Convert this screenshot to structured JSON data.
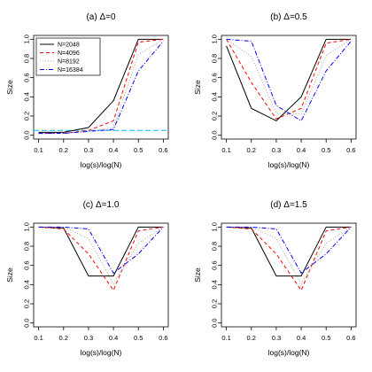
{
  "figure": {
    "xlabel": "log(s)/log(N)",
    "ylabel": "Size",
    "xticks": [
      "0.1",
      "0.2",
      "0.3",
      "0.4",
      "0.5",
      "0.6"
    ],
    "yticks": [
      "0.0",
      "0.2",
      "0.4",
      "0.6",
      "0.8",
      "1.0"
    ]
  },
  "series_styles": [
    {
      "name": "N=2048",
      "color": "#000000",
      "dash": "none"
    },
    {
      "name": "N=4096",
      "color": "#ff0000",
      "dash": "4,3"
    },
    {
      "name": "N=8192",
      "color": "#aaaaaa",
      "dash": "1,2"
    },
    {
      "name": "N=16384",
      "color": "#0000ff",
      "dash": "5,2,1,2"
    }
  ],
  "chart_data": [
    {
      "type": "line",
      "title": "(a) Δ=0",
      "xlabel": "log(s)/log(N)",
      "ylabel": "Size",
      "x": [
        0.1,
        0.2,
        0.3,
        0.4,
        0.5,
        0.6
      ],
      "xlim": [
        0.1,
        0.6
      ],
      "ylim": [
        0,
        1
      ],
      "legend": "top-left",
      "reference_line": {
        "y": 0.05,
        "color": "#00bfff",
        "dash": "6,3"
      },
      "series": [
        {
          "name": "N=2048",
          "values": [
            0.03,
            0.03,
            0.08,
            0.36,
            1.0,
            1.0
          ]
        },
        {
          "name": "N=4096",
          "values": [
            0.02,
            0.02,
            0.05,
            0.15,
            0.97,
            1.0
          ]
        },
        {
          "name": "N=8192",
          "values": [
            0.01,
            0.02,
            0.05,
            0.08,
            0.84,
            1.0
          ]
        },
        {
          "name": "N=16384",
          "values": [
            0.02,
            0.02,
            0.04,
            0.06,
            0.67,
            0.98
          ]
        }
      ]
    },
    {
      "type": "line",
      "title": "(b) Δ=0.5",
      "xlabel": "log(s)/log(N)",
      "ylabel": "Size",
      "x": [
        0.1,
        0.2,
        0.3,
        0.4,
        0.5,
        0.6
      ],
      "xlim": [
        0.1,
        0.6
      ],
      "ylim": [
        0,
        1
      ],
      "series": [
        {
          "name": "N=2048",
          "values": [
            0.93,
            0.28,
            0.15,
            0.4,
            1.0,
            1.0
          ]
        },
        {
          "name": "N=4096",
          "values": [
            1.0,
            0.55,
            0.17,
            0.28,
            0.96,
            1.0
          ]
        },
        {
          "name": "N=8192",
          "values": [
            1.0,
            0.82,
            0.23,
            0.22,
            0.83,
            1.0
          ]
        },
        {
          "name": "N=16384",
          "values": [
            1.0,
            0.98,
            0.31,
            0.15,
            0.67,
            0.98
          ]
        }
      ]
    },
    {
      "type": "line",
      "title": "(c) Δ=1.0",
      "xlabel": "log(s)/log(N)",
      "ylabel": "Size",
      "x": [
        0.1,
        0.2,
        0.3,
        0.4,
        0.5,
        0.6
      ],
      "xlim": [
        0.1,
        0.6
      ],
      "ylim": [
        0,
        1
      ],
      "series": [
        {
          "name": "N=2048",
          "values": [
            1.0,
            0.99,
            0.49,
            0.49,
            1.0,
            1.0
          ]
        },
        {
          "name": "N=4096",
          "values": [
            1.0,
            0.98,
            0.72,
            0.34,
            0.96,
            1.0
          ]
        },
        {
          "name": "N=8192",
          "values": [
            1.0,
            1.0,
            0.88,
            0.41,
            0.83,
            1.0
          ]
        },
        {
          "name": "N=16384",
          "values": [
            1.0,
            1.0,
            0.98,
            0.52,
            0.72,
            1.0
          ]
        }
      ]
    },
    {
      "type": "line",
      "title": "(d) Δ=1.5",
      "xlabel": "log(s)/log(N)",
      "ylabel": "Size",
      "x": [
        0.1,
        0.2,
        0.3,
        0.4,
        0.5,
        0.6
      ],
      "xlim": [
        0.1,
        0.6
      ],
      "ylim": [
        0,
        1
      ],
      "series": [
        {
          "name": "N=2048",
          "values": [
            1.0,
            0.99,
            0.49,
            0.49,
            1.0,
            1.0
          ]
        },
        {
          "name": "N=4096",
          "values": [
            1.0,
            0.98,
            0.72,
            0.34,
            0.96,
            1.0
          ]
        },
        {
          "name": "N=8192",
          "values": [
            1.0,
            1.0,
            0.88,
            0.41,
            0.83,
            1.0
          ]
        },
        {
          "name": "N=16384",
          "values": [
            1.0,
            1.0,
            0.98,
            0.52,
            0.72,
            1.0
          ]
        }
      ]
    }
  ]
}
